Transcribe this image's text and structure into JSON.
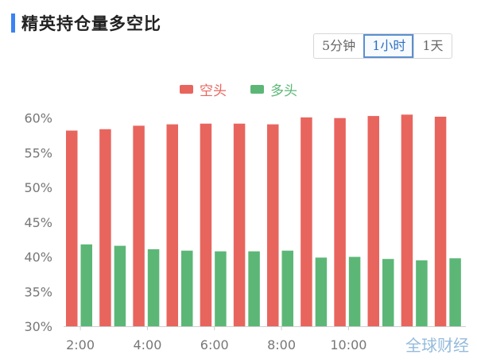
{
  "header": {
    "title": "精英持仓量多空比",
    "accent_color": "#3b82f6"
  },
  "interval_tabs": [
    {
      "label": "5分钟",
      "active": false
    },
    {
      "label": "1小时",
      "active": true
    },
    {
      "label": "1天",
      "active": false
    }
  ],
  "watermark": "全球财经",
  "chart_data": {
    "type": "bar",
    "legend_position": "top-center",
    "grid": false,
    "series": [
      {
        "name": "空头",
        "color": "#e8655e",
        "values": [
          58.2,
          58.4,
          58.9,
          59.1,
          59.2,
          59.2,
          59.1,
          60.1,
          60.0,
          60.3,
          60.5,
          60.2
        ]
      },
      {
        "name": "多头",
        "color": "#5cb777",
        "values": [
          41.8,
          41.6,
          41.1,
          40.9,
          40.8,
          40.8,
          40.9,
          39.9,
          40.0,
          39.7,
          39.5,
          39.8
        ]
      }
    ],
    "x_tick_labels": [
      "2:00",
      "4:00",
      "6:00",
      "8:00",
      "10:00"
    ],
    "y_ticks": [
      "60%",
      "55%",
      "50%",
      "45%",
      "40%",
      "35%",
      "30%"
    ],
    "ylim": [
      30,
      61
    ]
  }
}
